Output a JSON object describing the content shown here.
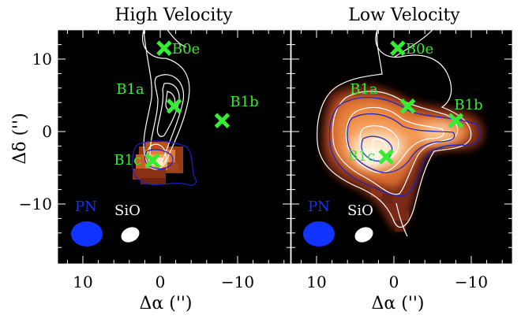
{
  "figure": {
    "ylabel": "Δδ ('')",
    "xlabel": "Δα ('')",
    "colors": {
      "background": "#000000",
      "marker": "#33ee33",
      "marker_label": "#33ee33",
      "contour_white": "#ffffff",
      "contour_blue": "#1a22cc",
      "pn_beam": "#1133ff",
      "sio_beam": "#ffffff",
      "emission_hot": "#fff0d8",
      "emission_mid": "#f28a3a",
      "emission_low": "#7a2a14"
    },
    "axes": {
      "x_range": [
        14,
        -16
      ],
      "y_range": [
        -18,
        14
      ],
      "x_ticks": [
        10,
        0,
        -10
      ],
      "x_tick_labels": [
        "10",
        "0",
        "−10"
      ],
      "y_ticks": [
        10,
        0,
        -10
      ],
      "y_tick_labels": [
        "10",
        "0",
        "−10"
      ]
    },
    "beam_labels": {
      "pn": "PN",
      "sio": "SiO"
    }
  },
  "panels": [
    {
      "title": "High Velocity",
      "sources": [
        {
          "label": "B0e",
          "x": -0.5,
          "y": 11.5
        },
        {
          "label": "B1a",
          "x": -1.8,
          "y": 3.5
        },
        {
          "label": "B1b",
          "x": -8.0,
          "y": 1.5
        },
        {
          "label": "B1c",
          "x": 1.0,
          "y": -4.0
        }
      ]
    },
    {
      "title": "Low Velocity",
      "sources": [
        {
          "label": "B0e",
          "x": -0.5,
          "y": 11.5
        },
        {
          "label": "B1a",
          "x": -1.8,
          "y": 3.5
        },
        {
          "label": "B1b",
          "x": -8.0,
          "y": 1.5
        },
        {
          "label": "B1c",
          "x": 1.0,
          "y": -3.5
        }
      ]
    }
  ]
}
